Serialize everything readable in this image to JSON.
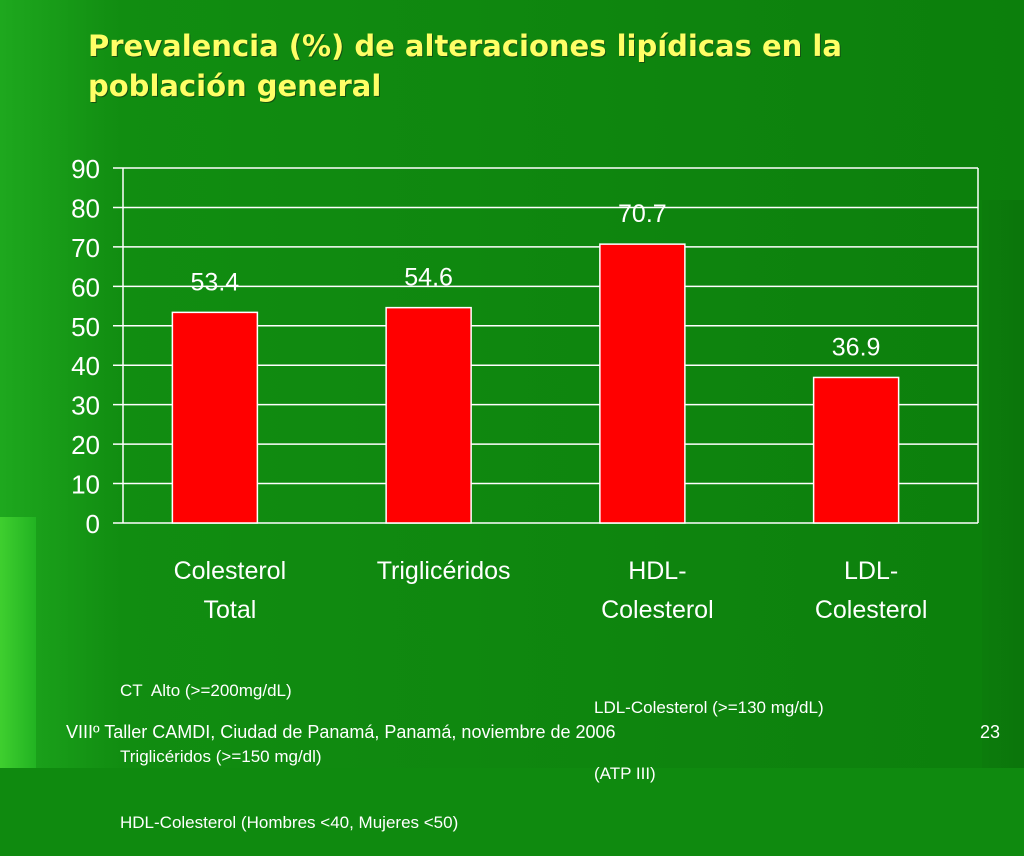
{
  "slide": {
    "title": "Prevalencia (%) de alteraciones lipídicas en la población general",
    "footer_left": "VIIIº Taller CAMDI, Ciudad de Panamá, Panamá, noviembre de 2006",
    "page_number": "23"
  },
  "notes": {
    "left": [
      "CT  Alto (>=200mg/dL)",
      "Triglicéridos (>=150 mg/dl)",
      "HDL-Colesterol (Hombres <40, Mujeres <50)"
    ],
    "right": [
      "LDL-Colesterol (>=130 mg/dL)",
      "(ATP III)"
    ]
  },
  "colors": {
    "bar": "#ff0000",
    "bar_border": "#ffffff",
    "grid": "#ffffff",
    "tick_text": "#ffffff",
    "label_text": "#ffffff",
    "title": "#ffff66"
  },
  "chart_data": {
    "type": "bar",
    "categories": [
      [
        "Colesterol",
        "Total"
      ],
      [
        "Triglicéridos"
      ],
      [
        "HDL-",
        "Colesterol"
      ],
      [
        "LDL-",
        "Colesterol"
      ]
    ],
    "values": [
      53.4,
      54.6,
      70.7,
      36.9
    ],
    "data_labels": [
      "53.4",
      "54.6",
      "70.7",
      "36.9"
    ],
    "ylim": [
      0,
      90
    ],
    "yticks": [
      0,
      10,
      20,
      30,
      40,
      50,
      60,
      70,
      80,
      90
    ],
    "grid": true,
    "legend": false
  }
}
